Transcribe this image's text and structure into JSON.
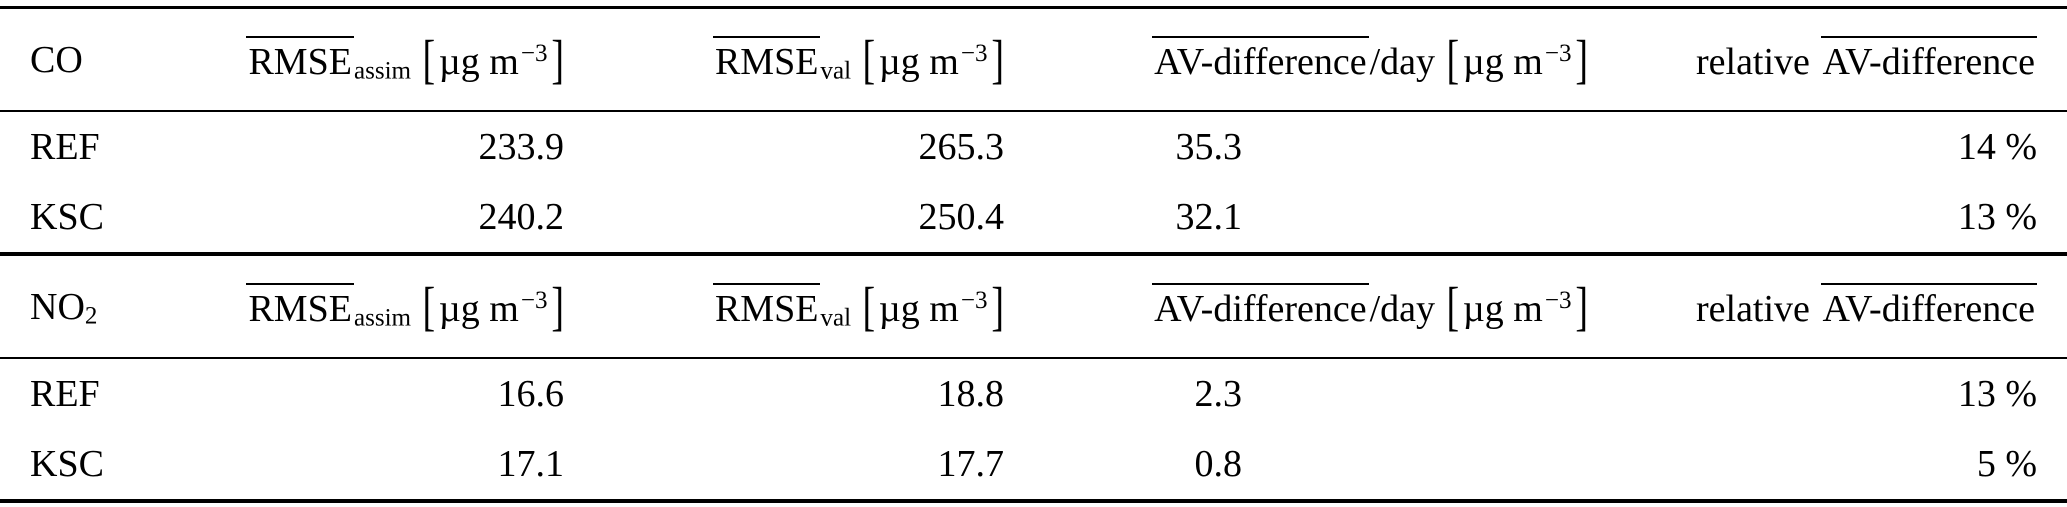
{
  "page": {
    "background": "#ffffff",
    "text_color": "#000000"
  },
  "table": {
    "headers": {
      "rmse": "RMSE",
      "assim": "assim",
      "val": "val",
      "av_difference": "AV-difference",
      "per_day": "/day",
      "relative": "relative",
      "lbracket": "[",
      "rbracket": "]",
      "unit": "µg m",
      "unit_exponent": "−3"
    },
    "sections": [
      {
        "species": "CO",
        "species_sub": "",
        "rows": [
          {
            "label": "REF",
            "values": [
              "233.9",
              "265.3",
              "35.3",
              "14 %"
            ]
          },
          {
            "label": "KSC",
            "values": [
              "240.2",
              "250.4",
              "32.1",
              "13 %"
            ]
          }
        ]
      },
      {
        "species": "NO",
        "species_sub": "2",
        "rows": [
          {
            "label": "REF",
            "values": [
              "16.6",
              "18.8",
              "2.3",
              "13 %"
            ]
          },
          {
            "label": "KSC",
            "values": [
              "17.1",
              "17.7",
              "0.8",
              "5 %"
            ]
          }
        ]
      }
    ]
  }
}
